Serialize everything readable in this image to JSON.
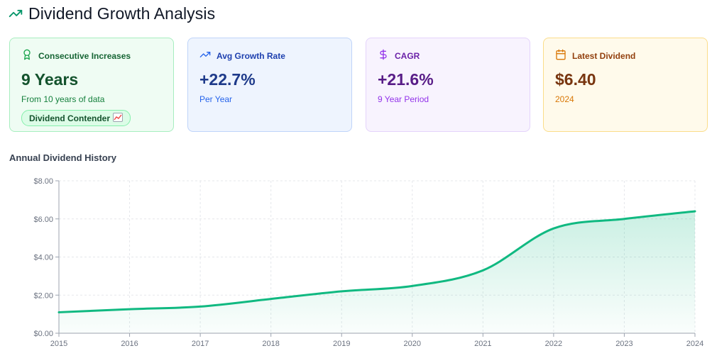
{
  "header": {
    "title": "Dividend Growth Analysis",
    "icon": "trending-up-icon"
  },
  "cards": [
    {
      "id": "consecutive",
      "label": "Consecutive Increases",
      "value": "9 Years",
      "sub": "From 10 years of data",
      "badge": "Dividend Contender",
      "badge_icon": "chart-emoji-icon",
      "icon": "award-icon",
      "color": "#166534"
    },
    {
      "id": "growth",
      "label": "Avg Growth Rate",
      "value": "+22.7%",
      "sub": "Per Year",
      "icon": "trending-up-icon",
      "color": "#1e40af"
    },
    {
      "id": "cagr",
      "label": "CAGR",
      "value": "+21.6%",
      "sub": "9 Year Period",
      "icon": "dollar-icon",
      "color": "#6b21a8"
    },
    {
      "id": "latest",
      "label": "Latest Dividend",
      "value": "$6.40",
      "sub": "2024",
      "icon": "calendar-icon",
      "color": "#92400e"
    }
  ],
  "chart_data": {
    "type": "area",
    "title": "Annual Dividend History",
    "x": [
      "2015",
      "2016",
      "2017",
      "2018",
      "2019",
      "2020",
      "2021",
      "2022",
      "2023",
      "2024"
    ],
    "series": [
      {
        "values": [
          1.1,
          1.26,
          1.4,
          1.8,
          2.2,
          2.48,
          3.3,
          5.5,
          6.0,
          6.4
        ],
        "color": "#10b981"
      }
    ],
    "ylim": [
      0,
      8
    ],
    "yticks": [
      "$0.00",
      "$2.00",
      "$4.00",
      "$6.00",
      "$8.00"
    ],
    "grid": true,
    "legend": "none"
  }
}
